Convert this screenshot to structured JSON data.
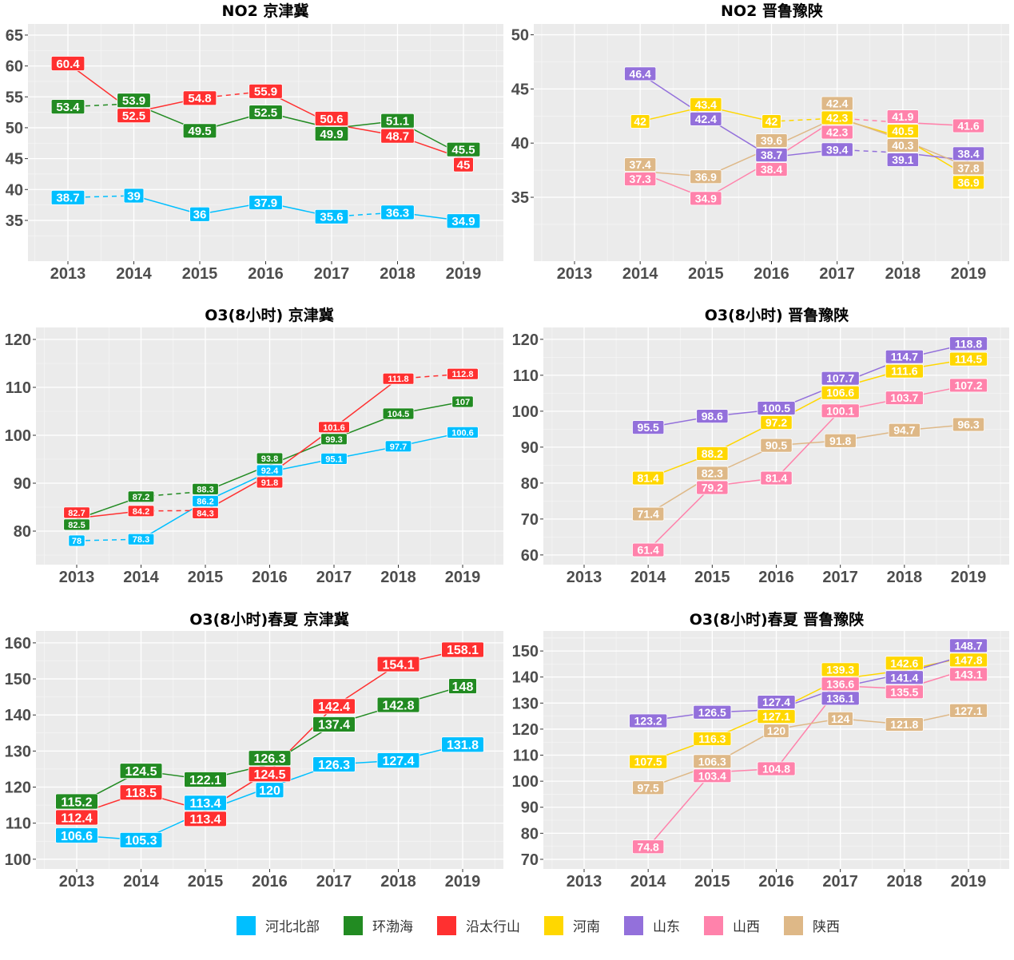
{
  "series_colors": {
    "河北北部": "#00BFFF",
    "环渤海": "#228B22",
    "沿太行山": "#FF3030",
    "河南": "#FFD700",
    "山东": "#9370DB",
    "山西": "#FF82AB",
    "陕西": "#DEB887"
  },
  "legend": {
    "position": "bottom",
    "items": [
      "河北北部",
      "环渤海",
      "沿太行山",
      "河南",
      "山东",
      "山西",
      "陕西"
    ]
  },
  "chart_data": [
    {
      "type": "line",
      "title": "NO2 京津冀",
      "x": [
        2013,
        2014,
        2015,
        2016,
        2017,
        2018,
        2019
      ],
      "ylim": [
        28.4,
        66.8
      ],
      "yticks": [
        35,
        40,
        45,
        50,
        55,
        60,
        65
      ],
      "grid": true,
      "series": [
        {
          "name": "河北北部",
          "values": [
            38.7,
            39,
            36,
            37.9,
            35.6,
            36.3,
            34.9
          ],
          "dashed_segments": [
            0,
            4
          ]
        },
        {
          "name": "环渤海",
          "values": [
            53.4,
            53.9,
            49.5,
            52.5,
            49.9,
            51.1,
            45.5
          ],
          "dashed_segments": [
            0
          ]
        },
        {
          "name": "沿太行山",
          "values": [
            60.4,
            52.5,
            54.8,
            55.9,
            50.6,
            48.7,
            45
          ],
          "dashed_segments": [
            2
          ]
        }
      ]
    },
    {
      "type": "line",
      "title": "NO2 晋鲁豫陕",
      "x": [
        2013,
        2014,
        2015,
        2016,
        2017,
        2018,
        2019
      ],
      "ylim": [
        29.1,
        51.0
      ],
      "yticks": [
        35,
        40,
        45,
        50
      ],
      "grid": true,
      "series": [
        {
          "name": "河南",
          "values": [
            null,
            42,
            43.4,
            42,
            42.3,
            40.5,
            36.9
          ],
          "dashed_segments": [
            3
          ]
        },
        {
          "name": "山东",
          "values": [
            null,
            46.4,
            42.4,
            38.7,
            39.4,
            39.1,
            38.4
          ],
          "dashed_segments": [
            4
          ]
        },
        {
          "name": "山西",
          "values": [
            null,
            37.3,
            34.9,
            38.4,
            42.3,
            41.9,
            41.6
          ],
          "dashed_segments": [
            4
          ]
        },
        {
          "name": "陕西",
          "values": [
            null,
            37.4,
            36.9,
            39.6,
            42.4,
            40.3,
            37.8
          ],
          "dashed_segments": []
        }
      ]
    },
    {
      "type": "line",
      "title": "O3(8小时) 京津冀",
      "x": [
        2013,
        2014,
        2015,
        2016,
        2017,
        2018,
        2019
      ],
      "ylim": [
        73,
        122.5
      ],
      "yticks": [
        80,
        90,
        100,
        110,
        120
      ],
      "grid": true,
      "series": [
        {
          "name": "河北北部",
          "values": [
            78,
            78.3,
            86.2,
            92.4,
            95.1,
            97.7,
            100.6
          ],
          "dashed_segments": [
            0
          ]
        },
        {
          "name": "环渤海",
          "values": [
            82.5,
            87.2,
            88.3,
            93.8,
            99.3,
            104.5,
            107
          ],
          "dashed_segments": [
            1
          ]
        },
        {
          "name": "沿太行山",
          "values": [
            82.7,
            84.2,
            84.3,
            91.8,
            101.6,
            111.8,
            112.8
          ],
          "dashed_segments": [
            1,
            5
          ]
        }
      ]
    },
    {
      "type": "line",
      "title": "O3(8小时) 晋鲁豫陕",
      "x": [
        2013,
        2014,
        2015,
        2016,
        2017,
        2018,
        2019
      ],
      "ylim": [
        57.3,
        123.3
      ],
      "yticks": [
        60,
        70,
        80,
        90,
        100,
        110,
        120
      ],
      "grid": true,
      "series": [
        {
          "name": "河南",
          "values": [
            null,
            81.4,
            88.2,
            97.2,
            106.6,
            111.6,
            114.5
          ],
          "dashed_segments": []
        },
        {
          "name": "山东",
          "values": [
            null,
            95.5,
            98.6,
            100.5,
            107.7,
            114.7,
            118.8
          ],
          "dashed_segments": []
        },
        {
          "name": "山西",
          "values": [
            null,
            61.4,
            79.2,
            81.4,
            100.1,
            103.7,
            107.2
          ],
          "dashed_segments": []
        },
        {
          "name": "陕西",
          "values": [
            null,
            71.4,
            82.3,
            90.5,
            91.8,
            94.7,
            96.3
          ],
          "dashed_segments": []
        }
      ]
    },
    {
      "type": "line",
      "title": "O3(8小时)春夏 京津冀",
      "x": [
        2013,
        2014,
        2015,
        2016,
        2017,
        2018,
        2019
      ],
      "ylim": [
        97.3,
        163.3
      ],
      "yticks": [
        100,
        110,
        120,
        130,
        140,
        150,
        160
      ],
      "grid": true,
      "series": [
        {
          "name": "河北北部",
          "values": [
            106.6,
            105.3,
            113.4,
            120,
            126.3,
            127.4,
            131.8
          ],
          "dashed_segments": []
        },
        {
          "name": "环渤海",
          "values": [
            115.2,
            124.5,
            122.1,
            126.3,
            137.4,
            142.8,
            148
          ],
          "dashed_segments": []
        },
        {
          "name": "沿太行山",
          "values": [
            112.4,
            118.5,
            113.4,
            124.5,
            142.4,
            154.1,
            158.1
          ],
          "dashed_segments": []
        }
      ]
    },
    {
      "type": "line",
      "title": "O3(8小时)春夏 晋鲁豫陕",
      "x": [
        2013,
        2014,
        2015,
        2016,
        2017,
        2018,
        2019
      ],
      "ylim": [
        66.3,
        157.7
      ],
      "yticks": [
        70,
        80,
        90,
        100,
        110,
        120,
        130,
        140,
        150
      ],
      "grid": true,
      "series": [
        {
          "name": "河南",
          "values": [
            null,
            107.5,
            116.3,
            127.1,
            139.3,
            142.6,
            147.8
          ],
          "dashed_segments": []
        },
        {
          "name": "山东",
          "values": [
            null,
            123.2,
            126.5,
            127.4,
            136.1,
            141.4,
            148.7
          ],
          "dashed_segments": []
        },
        {
          "name": "山西",
          "values": [
            null,
            74.8,
            103.4,
            104.8,
            136.6,
            135.5,
            143.1
          ],
          "dashed_segments": []
        },
        {
          "name": "陕西",
          "values": [
            null,
            97.5,
            106.3,
            120,
            124,
            121.8,
            127.1
          ],
          "dashed_segments": []
        }
      ]
    }
  ]
}
